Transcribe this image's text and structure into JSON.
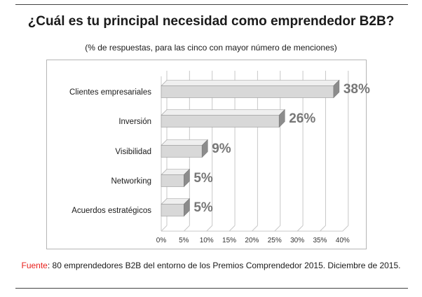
{
  "title": "¿Cuál es tu principal necesidad como emprendedor B2B?",
  "subtitle": "(% de respuestas, para las cinco con mayor número de menciones)",
  "source": {
    "label": "Fuente",
    "text": ": 80 emprendedores B2B del entorno de los Premios Comprendedor 2015. Diciembre de 2015."
  },
  "colors": {
    "bar_front": "#d8d8d8",
    "bar_top": "#efefef",
    "bar_side": "#8c8c8c",
    "value_label": "#777777",
    "grid": "#c8c8c8",
    "source_label": "#e8201c"
  },
  "chart_data": {
    "type": "bar",
    "orientation": "horizontal",
    "style": "3d",
    "categories": [
      "Clientes empresariales",
      "Inversión",
      "Visibilidad",
      "Networking",
      "Acuerdos estratégicos"
    ],
    "values": [
      38,
      26,
      9,
      5,
      5
    ],
    "value_labels": [
      "38%",
      "26%",
      "9%",
      "5%",
      "5%"
    ],
    "x_ticks": [
      "0%",
      "5%",
      "10%",
      "15%",
      "20%",
      "25%",
      "30%",
      "35%",
      "40%"
    ],
    "xlim": [
      0,
      40
    ],
    "grid": true,
    "legend": "none"
  }
}
